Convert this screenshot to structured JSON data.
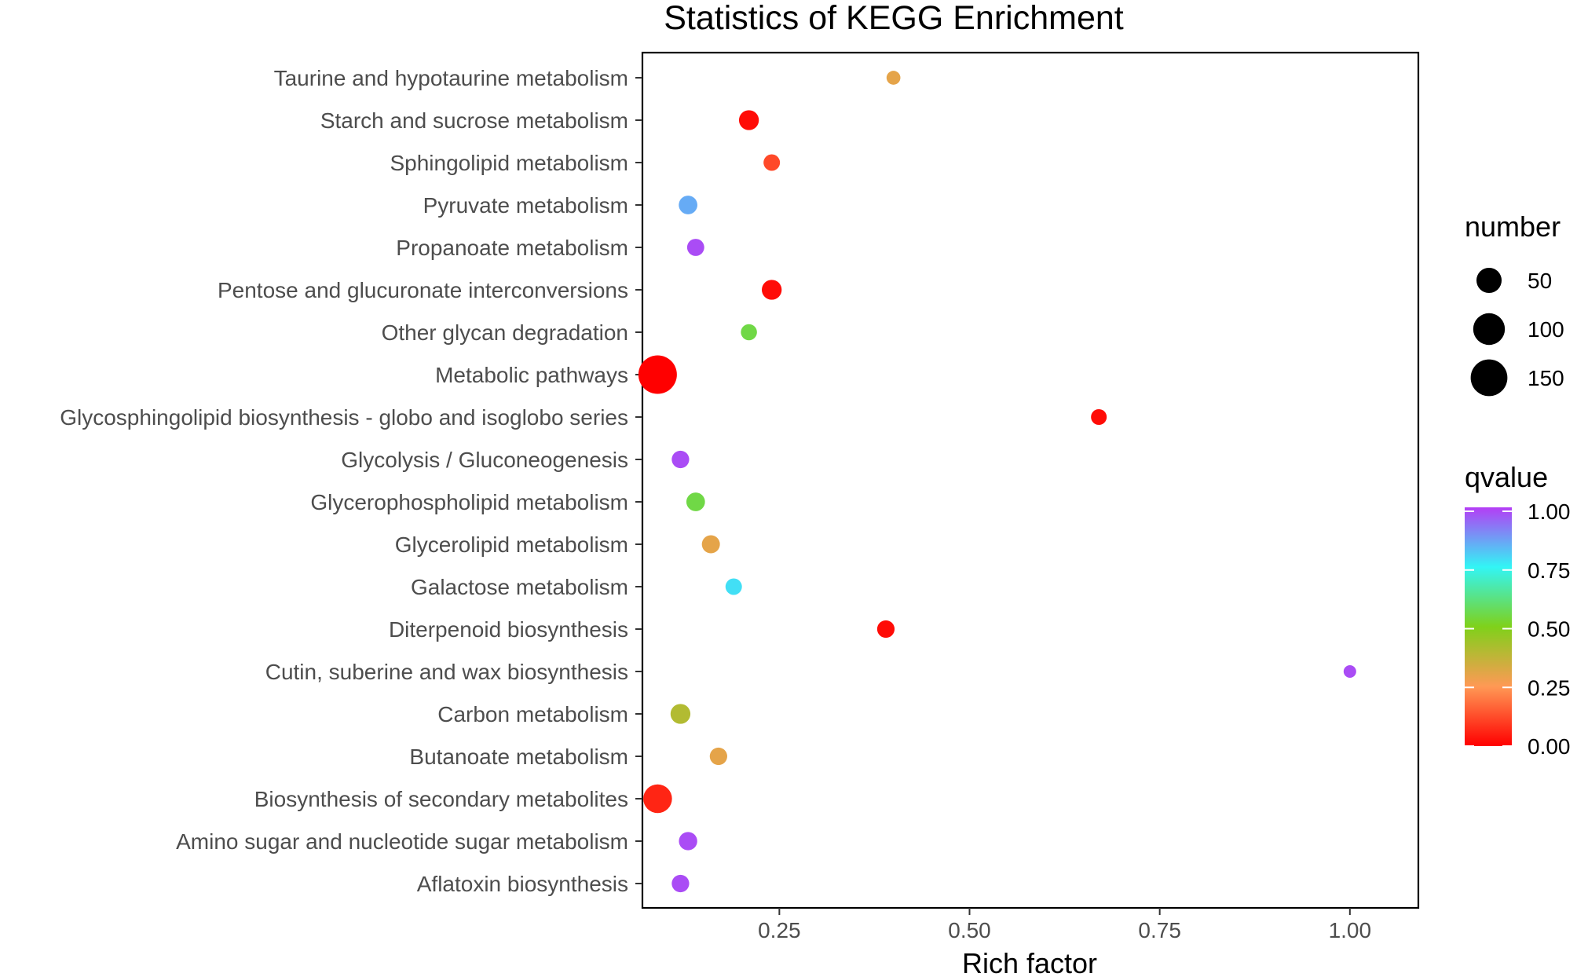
{
  "chart_data": {
    "type": "scatter",
    "title": "Statistics of KEGG Enrichment",
    "xlabel": "Rich factor",
    "ylabel": "",
    "xlim": [
      0.07,
      1.09
    ],
    "xticks": [
      0.25,
      0.5,
      0.75,
      1.0
    ],
    "xtick_labels": [
      "0.25",
      "0.50",
      "0.75",
      "1.00"
    ],
    "grid": false,
    "categories": [
      "Taurine and hypotaurine metabolism",
      "Starch and sucrose metabolism",
      "Sphingolipid metabolism",
      "Pyruvate metabolism",
      "Propanoate metabolism",
      "Pentose and glucuronate interconversions",
      "Other glycan degradation",
      "Metabolic pathways",
      "Glycosphingolipid biosynthesis - globo and isoglobo series",
      "Glycolysis / Gluconeogenesis",
      "Glycerophospholipid metabolism",
      "Glycerolipid metabolism",
      "Galactose metabolism",
      "Diterpenoid biosynthesis",
      "Cutin, suberine and wax biosynthesis",
      "Carbon metabolism",
      "Butanoate metabolism",
      "Biosynthesis of secondary metabolites",
      "Amino sugar and nucleotide sugar metabolism",
      "Aflatoxin biosynthesis"
    ],
    "points": [
      {
        "category": "Taurine and hypotaurine metabolism",
        "rich_factor": 0.4,
        "number": 4,
        "qvalue": 0.3
      },
      {
        "category": "Starch and sucrose metabolism",
        "rich_factor": 0.21,
        "number": 22,
        "qvalue": 0.02
      },
      {
        "category": "Sphingolipid metabolism",
        "rich_factor": 0.24,
        "number": 10,
        "qvalue": 0.12
      },
      {
        "category": "Pyruvate metabolism",
        "rich_factor": 0.13,
        "number": 17,
        "qvalue": 0.85
      },
      {
        "category": "Propanoate metabolism",
        "rich_factor": 0.14,
        "number": 12,
        "qvalue": 0.98
      },
      {
        "category": "Pentose and glucuronate interconversions",
        "rich_factor": 0.24,
        "number": 22,
        "qvalue": 0.02
      },
      {
        "category": "Other glycan degradation",
        "rich_factor": 0.21,
        "number": 9,
        "qvalue": 0.55
      },
      {
        "category": "Metabolic pathways",
        "rich_factor": 0.09,
        "number": 170,
        "qvalue": 0.0
      },
      {
        "category": "Glycosphingolipid biosynthesis - globo and isoglobo series",
        "rich_factor": 0.67,
        "number": 8,
        "qvalue": 0.02
      },
      {
        "category": "Glycolysis / Gluconeogenesis",
        "rich_factor": 0.12,
        "number": 13,
        "qvalue": 0.98
      },
      {
        "category": "Glycerophospholipid metabolism",
        "rich_factor": 0.14,
        "number": 17,
        "qvalue": 0.55
      },
      {
        "category": "Glycerolipid metabolism",
        "rich_factor": 0.16,
        "number": 15,
        "qvalue": 0.3
      },
      {
        "category": "Galactose metabolism",
        "rich_factor": 0.19,
        "number": 10,
        "qvalue": 0.78
      },
      {
        "category": "Diterpenoid biosynthesis",
        "rich_factor": 0.39,
        "number": 13,
        "qvalue": 0.02
      },
      {
        "category": "Cutin, suberine and wax biosynthesis",
        "rich_factor": 1.0,
        "number": 2,
        "qvalue": 0.98
      },
      {
        "category": "Carbon metabolism",
        "rich_factor": 0.12,
        "number": 22,
        "qvalue": 0.4
      },
      {
        "category": "Butanoate metabolism",
        "rich_factor": 0.17,
        "number": 13,
        "qvalue": 0.3
      },
      {
        "category": "Biosynthesis of secondary metabolites",
        "rich_factor": 0.09,
        "number": 75,
        "qvalue": 0.06
      },
      {
        "category": "Amino sugar and nucleotide sugar metabolism",
        "rich_factor": 0.13,
        "number": 16,
        "qvalue": 0.98
      },
      {
        "category": "Aflatoxin biosynthesis",
        "rich_factor": 0.12,
        "number": 13,
        "qvalue": 0.98
      }
    ],
    "legend": {
      "size_title": "number",
      "size_values": [
        50,
        100,
        150
      ],
      "size_labels": [
        "50",
        "100",
        "150"
      ],
      "color_title": "qvalue",
      "color_ticks": [
        0.0,
        0.25,
        0.5,
        0.75,
        1.0
      ],
      "color_labels": [
        "0.00",
        "0.25",
        "0.50",
        "0.75",
        "1.00"
      ],
      "position": "right"
    },
    "colorscale": [
      "#ff0000",
      "#ff9955",
      "#7fd11a",
      "#32f5f5",
      "#b43df5"
    ]
  }
}
